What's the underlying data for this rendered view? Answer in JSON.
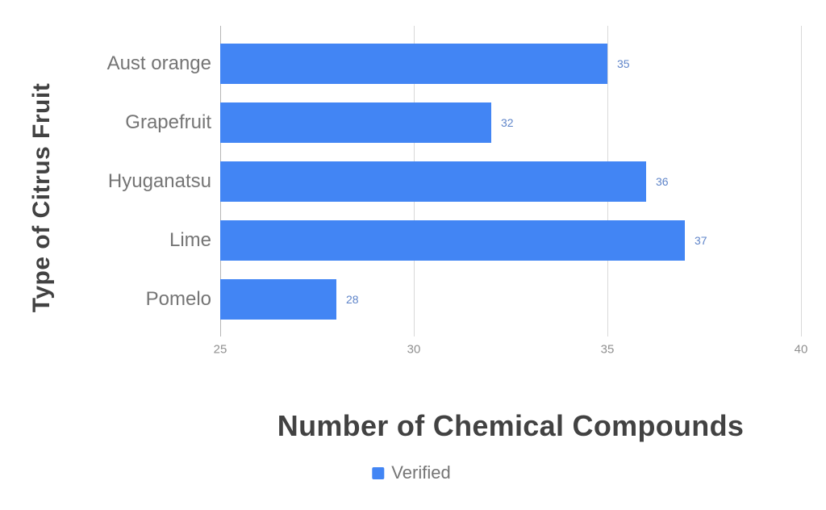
{
  "chart_data": {
    "type": "bar",
    "orientation": "horizontal",
    "xlabel": "Number of Chemical Compounds",
    "ylabel": "Type of Citrus Fruit",
    "categories": [
      "Aust orange",
      "Grapefruit",
      "Hyuganatsu",
      "Lime",
      "Pomelo"
    ],
    "series": [
      {
        "name": "Verified",
        "values": [
          35,
          32,
          36,
          37,
          28
        ]
      }
    ],
    "xlim": [
      25,
      40
    ],
    "xticks": [
      25,
      30,
      35,
      40
    ],
    "grid": true,
    "legend_position": "bottom",
    "value_label_position": "outside-end"
  },
  "colors": {
    "bar": "#4285f4",
    "value_label": "#5e84c9",
    "axis_title": "#424242",
    "category_label": "#757575",
    "tick_label": "#8f8f8f",
    "legend_label": "#757575",
    "gridline": "#d9d9d9",
    "baseline": "#b5b5b5",
    "background": "#ffffff"
  }
}
